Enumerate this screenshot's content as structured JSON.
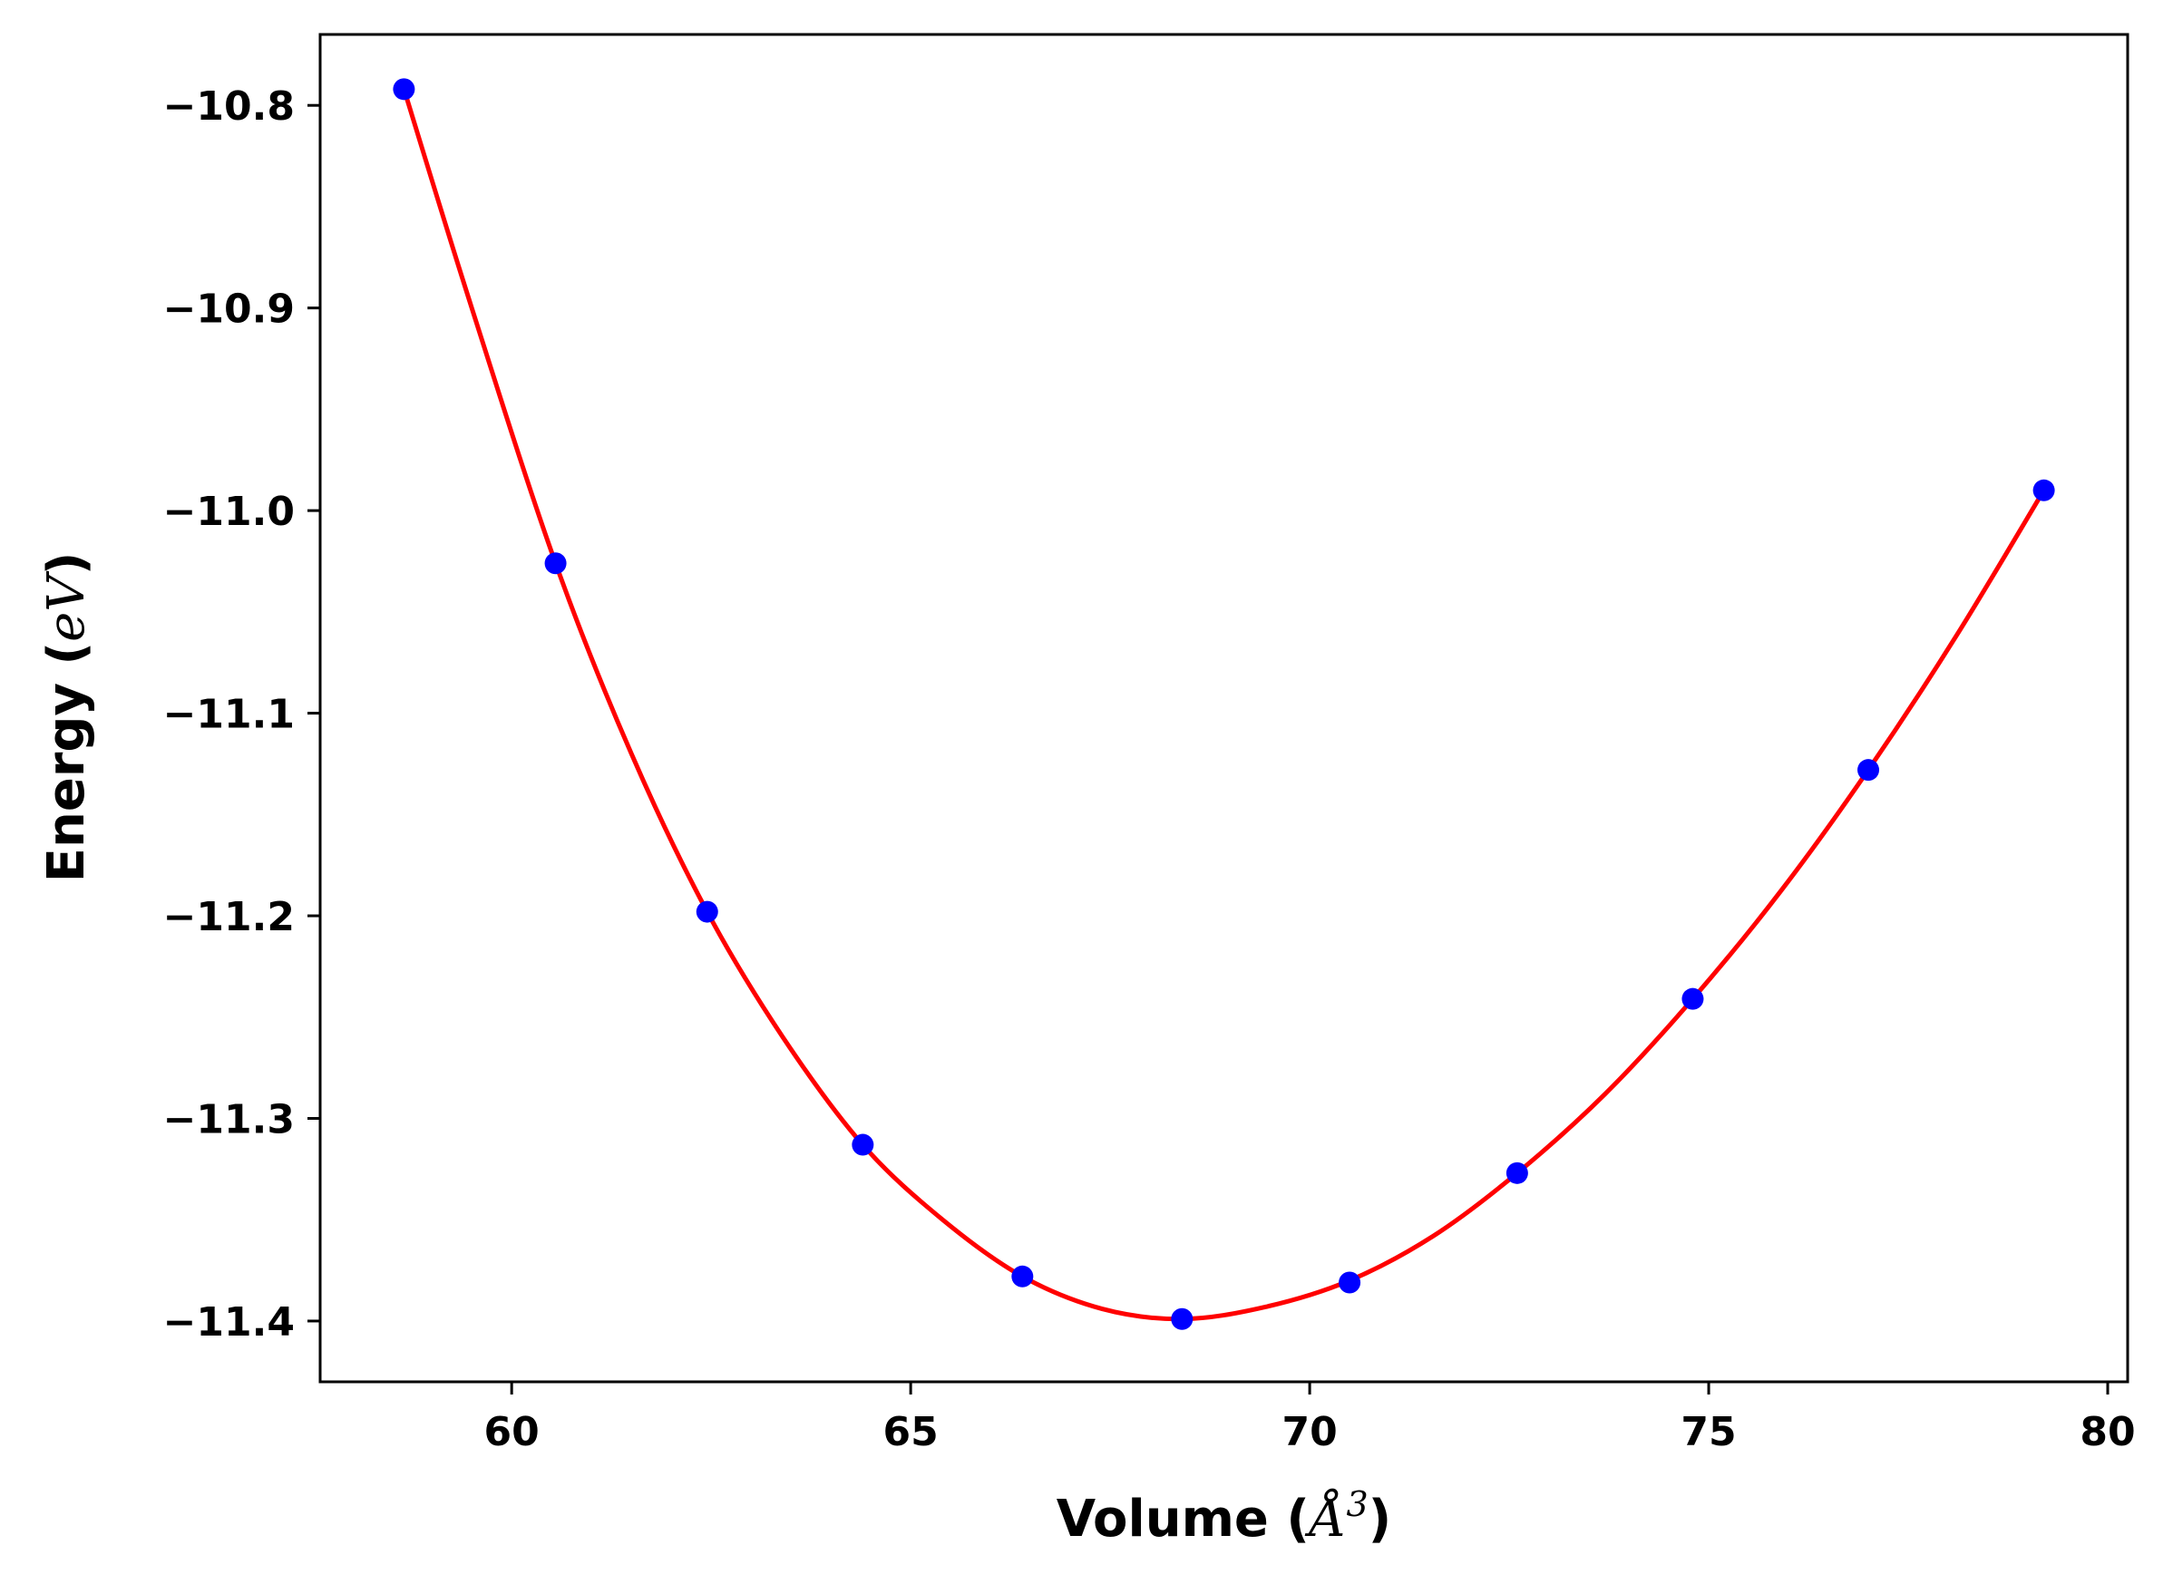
{
  "chart_data": {
    "type": "line",
    "title": "",
    "xlabel": {
      "prefix": "Volume (",
      "math": "Å",
      "sup": "3",
      "suffix": ")"
    },
    "ylabel": {
      "prefix": "Energy (",
      "math": "eV",
      "suffix": ")"
    },
    "xlim": [
      57.6,
      80.25
    ],
    "ylim": [
      -11.43,
      -10.765
    ],
    "xticks": [
      60,
      65,
      70,
      75,
      80
    ],
    "xtick_labels": [
      "60",
      "65",
      "70",
      "75",
      "80"
    ],
    "yticks": [
      -10.8,
      -10.9,
      -11.0,
      -11.1,
      -11.2,
      -11.3,
      -11.4
    ],
    "ytick_labels": [
      "−10.8",
      "−10.9",
      "−11.0",
      "−11.1",
      "−11.2",
      "−11.3",
      "−11.4"
    ],
    "grid": false,
    "series": [
      {
        "kind": "fit-curve",
        "color": "#ff0000",
        "x": [
          58.65,
          59.5,
          60.55,
          61.5,
          62.45,
          63.4,
          64.4,
          65.4,
          66.4,
          67.4,
          68.4,
          69.45,
          70.5,
          71.55,
          72.6,
          73.7,
          74.8,
          75.9,
          77.0,
          78.1,
          79.2
        ],
        "y": [
          -10.792,
          -10.9,
          -11.026,
          -11.12,
          -11.198,
          -11.26,
          -11.313,
          -11.35,
          -11.378,
          -11.394,
          -11.399,
          -11.393,
          -11.38,
          -11.358,
          -11.327,
          -11.288,
          -11.241,
          -11.188,
          -11.128,
          -11.062,
          -10.99
        ]
      },
      {
        "kind": "data-points",
        "color": "#0000ff",
        "x": [
          58.65,
          60.55,
          62.45,
          64.4,
          66.4,
          68.4,
          70.5,
          72.6,
          74.8,
          77.0,
          79.2
        ],
        "y": [
          -10.792,
          -11.026,
          -11.198,
          -11.313,
          -11.378,
          -11.399,
          -11.381,
          -11.327,
          -11.241,
          -11.128,
          -10.99
        ]
      }
    ]
  }
}
